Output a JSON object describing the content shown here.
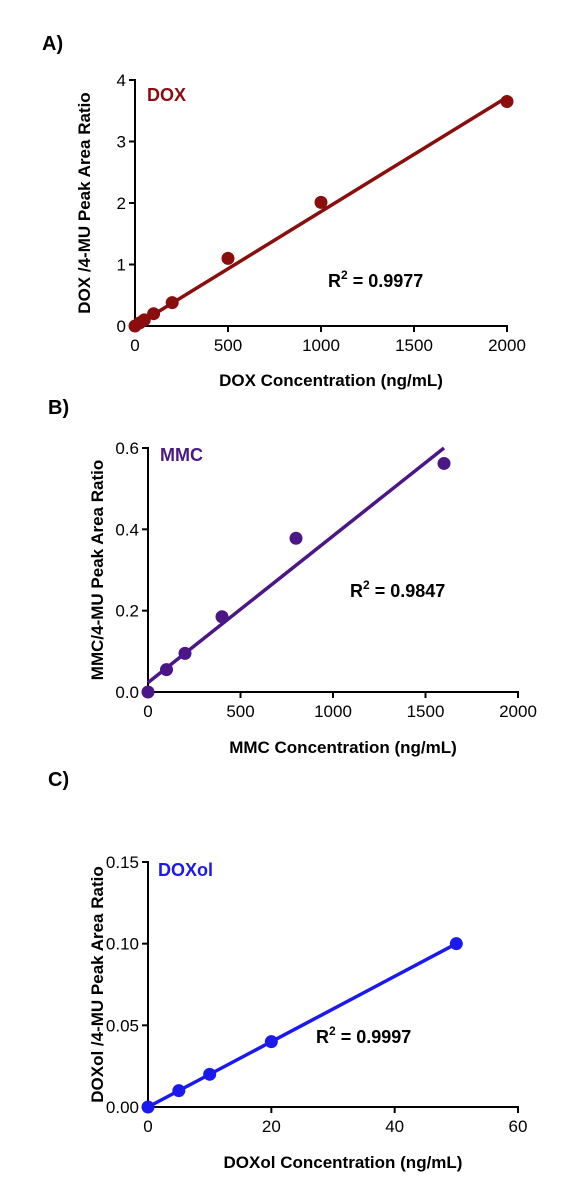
{
  "chart_data": [
    {
      "type": "scatter",
      "panel_label": "A)",
      "series_label": "DOX",
      "color": "#8b0e0e",
      "xlabel": "DOX Concentration (ng/mL)",
      "ylabel": "DOX /4-MU Peak Area Ratio",
      "xlim": [
        0,
        2000
      ],
      "ylim": [
        0,
        4
      ],
      "x_ticks": [
        0,
        500,
        1000,
        1500,
        2000
      ],
      "y_ticks": [
        0,
        1,
        2,
        3,
        4
      ],
      "y_tick_labels": [
        "0",
        "1",
        "2",
        "3",
        "4"
      ],
      "points": [
        {
          "x": 0,
          "y": 0.0
        },
        {
          "x": 25,
          "y": 0.05
        },
        {
          "x": 50,
          "y": 0.1
        },
        {
          "x": 100,
          "y": 0.2
        },
        {
          "x": 200,
          "y": 0.38
        },
        {
          "x": 500,
          "y": 1.1
        },
        {
          "x": 1000,
          "y": 2.01
        },
        {
          "x": 2000,
          "y": 3.65
        }
      ],
      "fit_line": {
        "x": [
          0,
          2000
        ],
        "y": [
          0.0,
          3.72
        ]
      },
      "annotation": {
        "prefix": "R",
        "superscript": "2",
        "suffix": " = 0.9977"
      }
    },
    {
      "type": "scatter",
      "panel_label": "B)",
      "series_label": "MMC",
      "color": "#4b1686",
      "xlabel": "MMC Concentration (ng/mL)",
      "ylabel": "MMC/4-MU Peak Area Ratio",
      "xlim": [
        0,
        2000
      ],
      "ylim": [
        0,
        0.6
      ],
      "x_ticks": [
        0,
        500,
        1000,
        1500,
        2000
      ],
      "y_ticks": [
        0,
        0.2,
        0.4,
        0.6
      ],
      "y_tick_labels": [
        "0.0",
        "0.2",
        "0.4",
        "0.6"
      ],
      "points": [
        {
          "x": 0,
          "y": 0.0
        },
        {
          "x": 100,
          "y": 0.055
        },
        {
          "x": 200,
          "y": 0.095
        },
        {
          "x": 400,
          "y": 0.185
        },
        {
          "x": 800,
          "y": 0.378
        },
        {
          "x": 1600,
          "y": 0.562
        }
      ],
      "fit_line": {
        "x": [
          0,
          1600
        ],
        "y": [
          0.023,
          0.6
        ]
      },
      "annotation": {
        "prefix": "R",
        "superscript": "2",
        "suffix": " = 0.9847"
      }
    },
    {
      "type": "scatter",
      "panel_label": "C)",
      "series_label": "DOXol",
      "color": "#1a1aee",
      "xlabel": "DOXol Concentration (ng/mL)",
      "ylabel": "DOXol /4-MU Peak Area Ratio",
      "xlim": [
        0,
        60
      ],
      "ylim": [
        0,
        0.15
      ],
      "x_ticks": [
        0,
        20,
        40,
        60
      ],
      "y_ticks": [
        0,
        0.05,
        0.1,
        0.15
      ],
      "y_tick_labels": [
        "0.00",
        "0.05",
        "0.10",
        "0.15"
      ],
      "points": [
        {
          "x": 0,
          "y": 0.0
        },
        {
          "x": 5,
          "y": 0.01
        },
        {
          "x": 10,
          "y": 0.02
        },
        {
          "x": 20,
          "y": 0.04
        },
        {
          "x": 50,
          "y": 0.1
        }
      ],
      "fit_line": {
        "x": [
          0,
          50
        ],
        "y": [
          0.0,
          0.1
        ]
      },
      "annotation": {
        "prefix": "R",
        "superscript": "2",
        "suffix": " = 0.9997"
      }
    }
  ]
}
